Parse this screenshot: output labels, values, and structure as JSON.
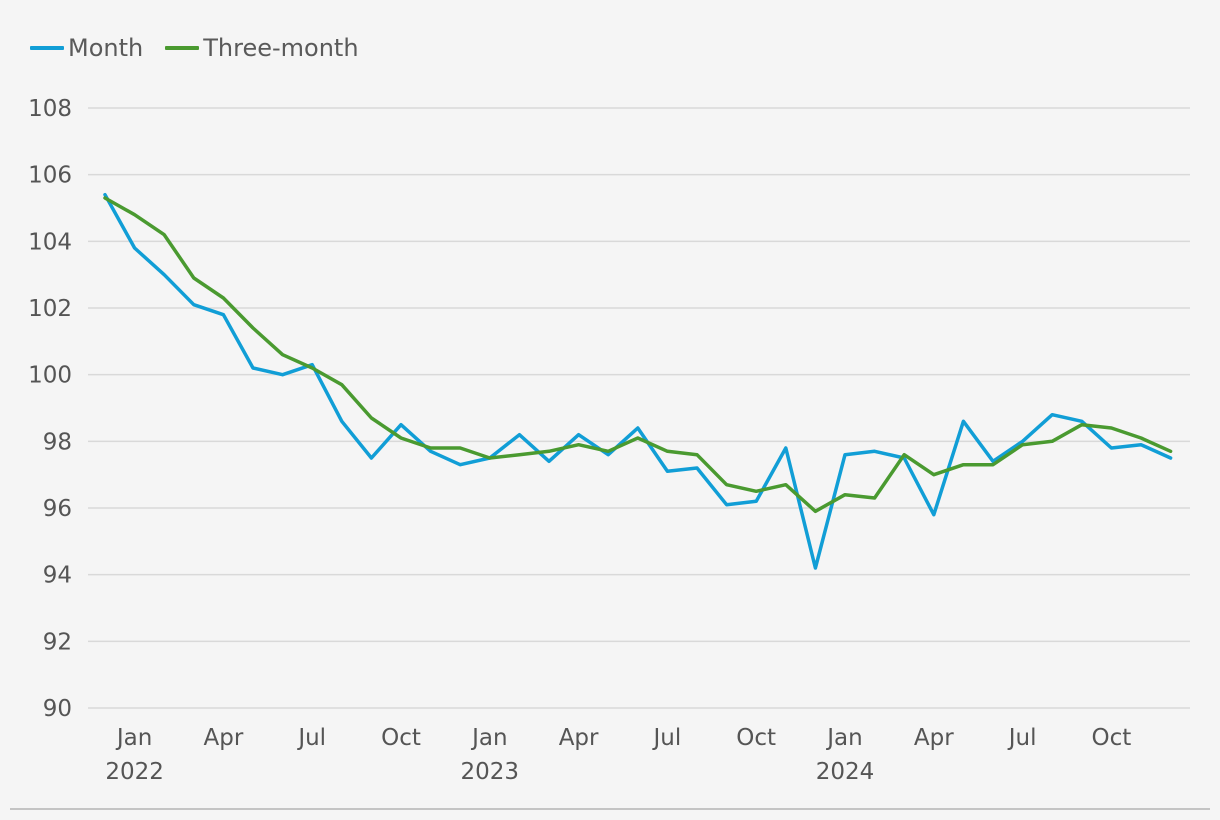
{
  "colors": {
    "month": "#119ed6",
    "three_month": "#4a9a30",
    "grid": "#d9d9d9",
    "text": "#555555"
  },
  "legend": {
    "position": "top-left",
    "items": [
      {
        "label": "Month",
        "color": "#119ed6"
      },
      {
        "label": "Three-month",
        "color": "#4a9a30"
      }
    ]
  },
  "chart_data": {
    "type": "line",
    "x": [
      "2021-12",
      "2022-01",
      "2022-02",
      "2022-03",
      "2022-04",
      "2022-05",
      "2022-06",
      "2022-07",
      "2022-08",
      "2022-09",
      "2022-10",
      "2022-11",
      "2022-12",
      "2023-01",
      "2023-02",
      "2023-03",
      "2023-04",
      "2023-05",
      "2023-06",
      "2023-07",
      "2023-08",
      "2023-09",
      "2023-10",
      "2023-11",
      "2023-12",
      "2024-01",
      "2024-02",
      "2024-03",
      "2024-04",
      "2024-05",
      "2024-06",
      "2024-07",
      "2024-08",
      "2024-09",
      "2024-10",
      "2024-11",
      "2024-12"
    ],
    "series": [
      {
        "name": "Month",
        "color": "#119ed6",
        "values": [
          105.4,
          103.8,
          103.0,
          102.1,
          101.8,
          100.2,
          100.0,
          100.3,
          98.6,
          97.5,
          98.5,
          97.7,
          97.3,
          97.5,
          98.2,
          97.4,
          98.2,
          97.6,
          98.4,
          97.1,
          97.2,
          96.1,
          96.2,
          97.8,
          94.2,
          97.6,
          97.7,
          97.5,
          95.8,
          98.6,
          97.4,
          98.0,
          98.8,
          98.6,
          97.8,
          97.9,
          97.5
        ]
      },
      {
        "name": "Three-month",
        "color": "#4a9a30",
        "values": [
          105.3,
          104.8,
          104.2,
          102.9,
          102.3,
          101.4,
          100.6,
          100.2,
          99.7,
          98.7,
          98.1,
          97.8,
          97.8,
          97.5,
          97.6,
          97.7,
          97.9,
          97.7,
          98.1,
          97.7,
          97.6,
          96.7,
          96.5,
          96.7,
          95.9,
          96.4,
          96.3,
          97.6,
          97.0,
          97.3,
          97.3,
          97.9,
          98.0,
          98.5,
          98.4,
          98.1,
          97.7
        ]
      }
    ],
    "ylim": [
      90,
      108
    ],
    "yticks": [
      "90",
      "92",
      "94",
      "96",
      "98",
      "100",
      "102",
      "104",
      "106",
      "108"
    ],
    "xticks": [
      {
        "index": 1,
        "month": "Jan",
        "year": "2022"
      },
      {
        "index": 4,
        "month": "Apr",
        "year": ""
      },
      {
        "index": 7,
        "month": "Jul",
        "year": ""
      },
      {
        "index": 10,
        "month": "Oct",
        "year": ""
      },
      {
        "index": 13,
        "month": "Jan",
        "year": "2023"
      },
      {
        "index": 16,
        "month": "Apr",
        "year": ""
      },
      {
        "index": 19,
        "month": "Jul",
        "year": ""
      },
      {
        "index": 22,
        "month": "Oct",
        "year": ""
      },
      {
        "index": 25,
        "month": "Jan",
        "year": "2024"
      },
      {
        "index": 28,
        "month": "Apr",
        "year": ""
      },
      {
        "index": 31,
        "month": "Jul",
        "year": ""
      },
      {
        "index": 34,
        "month": "Oct",
        "year": ""
      }
    ],
    "grid": true
  }
}
